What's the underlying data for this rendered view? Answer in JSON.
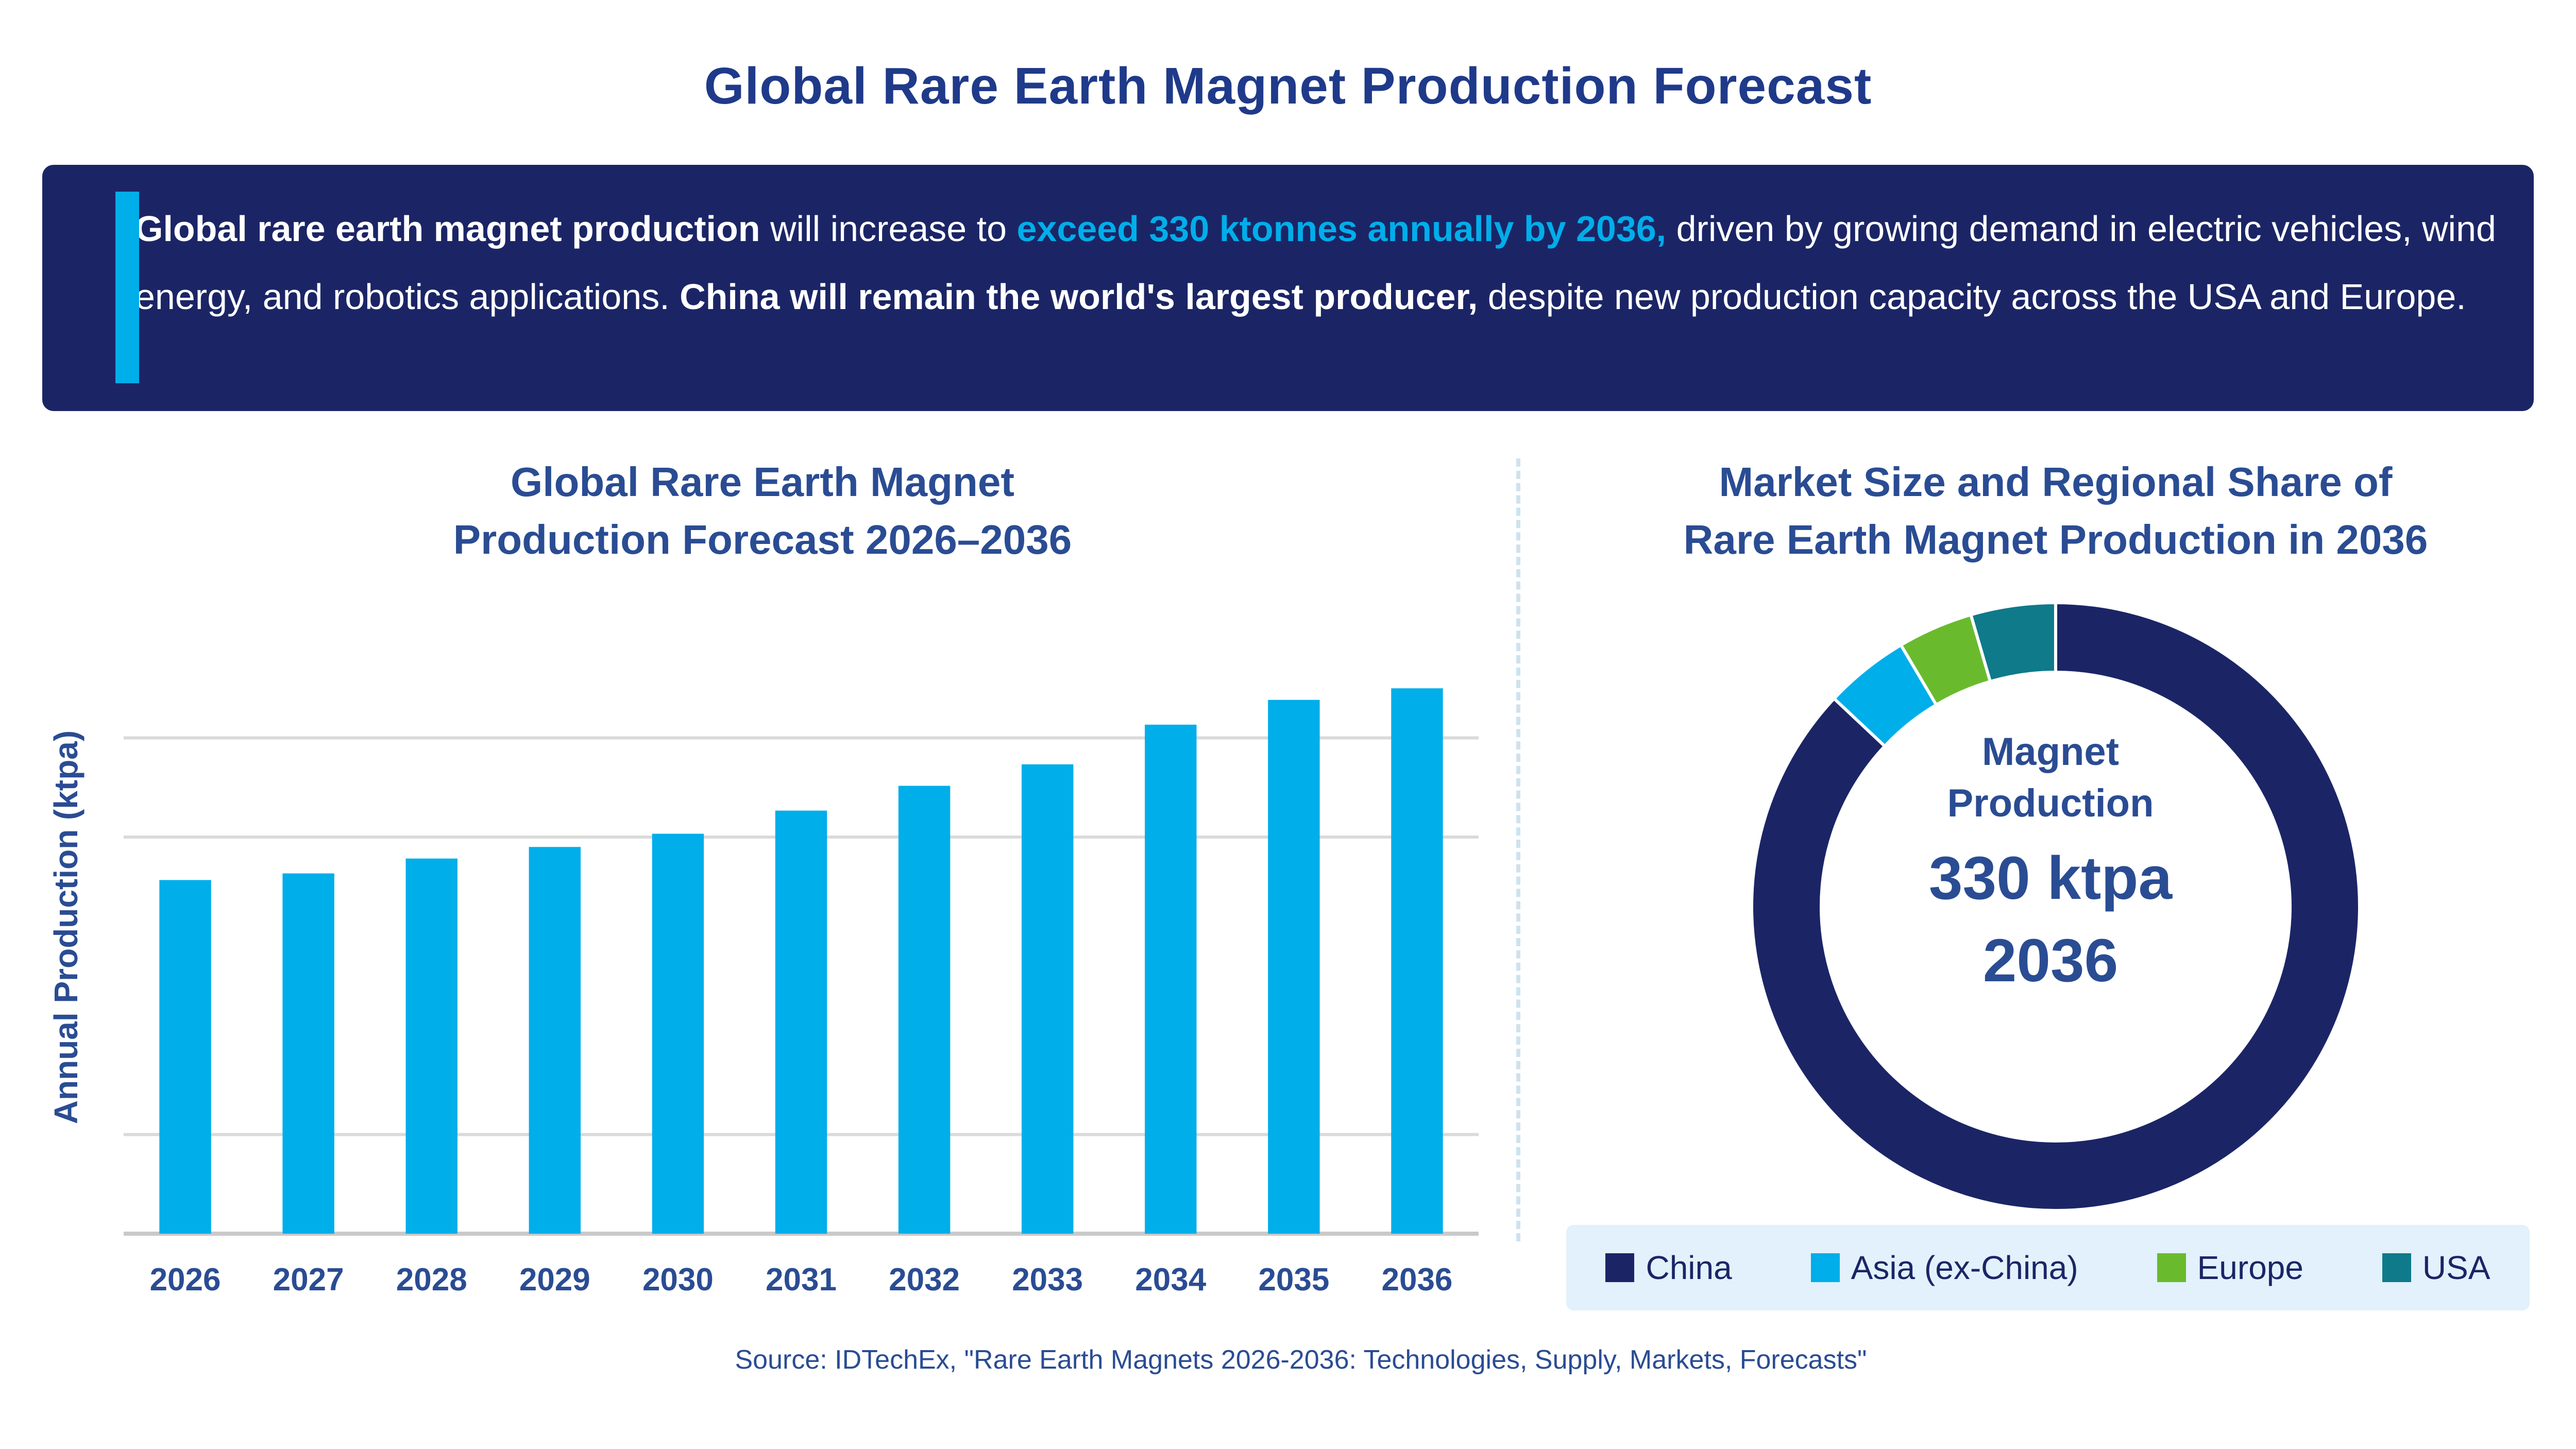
{
  "title": "Global Rare Earth Magnet Production Forecast",
  "summary": {
    "seg1_bold": "Global rare earth magnet production",
    "seg2": " will increase to ",
    "seg3_highlight": "exceed 330 ktonnes annually by 2036,",
    "seg4": " driven by growing demand in electric vehicles, wind energy, and robotics applications. ",
    "seg5_bold": "China will remain the world's largest producer,",
    "seg6": " despite new production capacity across the USA and Europe."
  },
  "colors": {
    "navy": "#1b2566",
    "bar": "#00aeea",
    "china": "#1b2566",
    "asia": "#00aeea",
    "europe": "#6aba2e",
    "usa": "#0f7a8a"
  },
  "bar_chart_title_line1": "Global Rare Earth Magnet",
  "bar_chart_title_line2": "Production Forecast 2026–2036",
  "chart_data": [
    {
      "type": "bar",
      "categories": [
        "2026",
        "2027",
        "2028",
        "2029",
        "2030",
        "2031",
        "2032",
        "2033",
        "2034",
        "2035",
        "2036"
      ],
      "values": [
        214,
        218,
        227,
        234,
        242,
        256,
        271,
        284,
        308,
        323,
        330
      ],
      "ylabel": "Annual Production (ktpa)",
      "ylim": [
        0,
        360
      ],
      "grid": true,
      "legend": "top-left"
    },
    {
      "type": "pie",
      "labels": [
        "China",
        "Asia (ex-China)",
        "Europe",
        "USA"
      ],
      "values": [
        87,
        4.5,
        4,
        4.5
      ],
      "grid": false,
      "legend": "bottom"
    }
  ],
  "donut_title_line1": "Market Size and Regional Share of",
  "donut_title_line2": "Rare Earth Magnet Production in 2036",
  "donut_center": {
    "title_line1": "Magnet",
    "title_line2": "Production",
    "value": "330 ktpa",
    "year": "2036"
  },
  "legend": [
    {
      "label": "China",
      "color": "#1b2566"
    },
    {
      "label": "Asia (ex-China)",
      "color": "#00aeea"
    },
    {
      "label": "Europe",
      "color": "#6aba2e"
    },
    {
      "label": "USA",
      "color": "#0f7a8a"
    }
  ],
  "source": "Source: IDTechEx, \"Rare Earth Magnets 2026-2036: Technologies, Supply, Markets, Forecasts\""
}
